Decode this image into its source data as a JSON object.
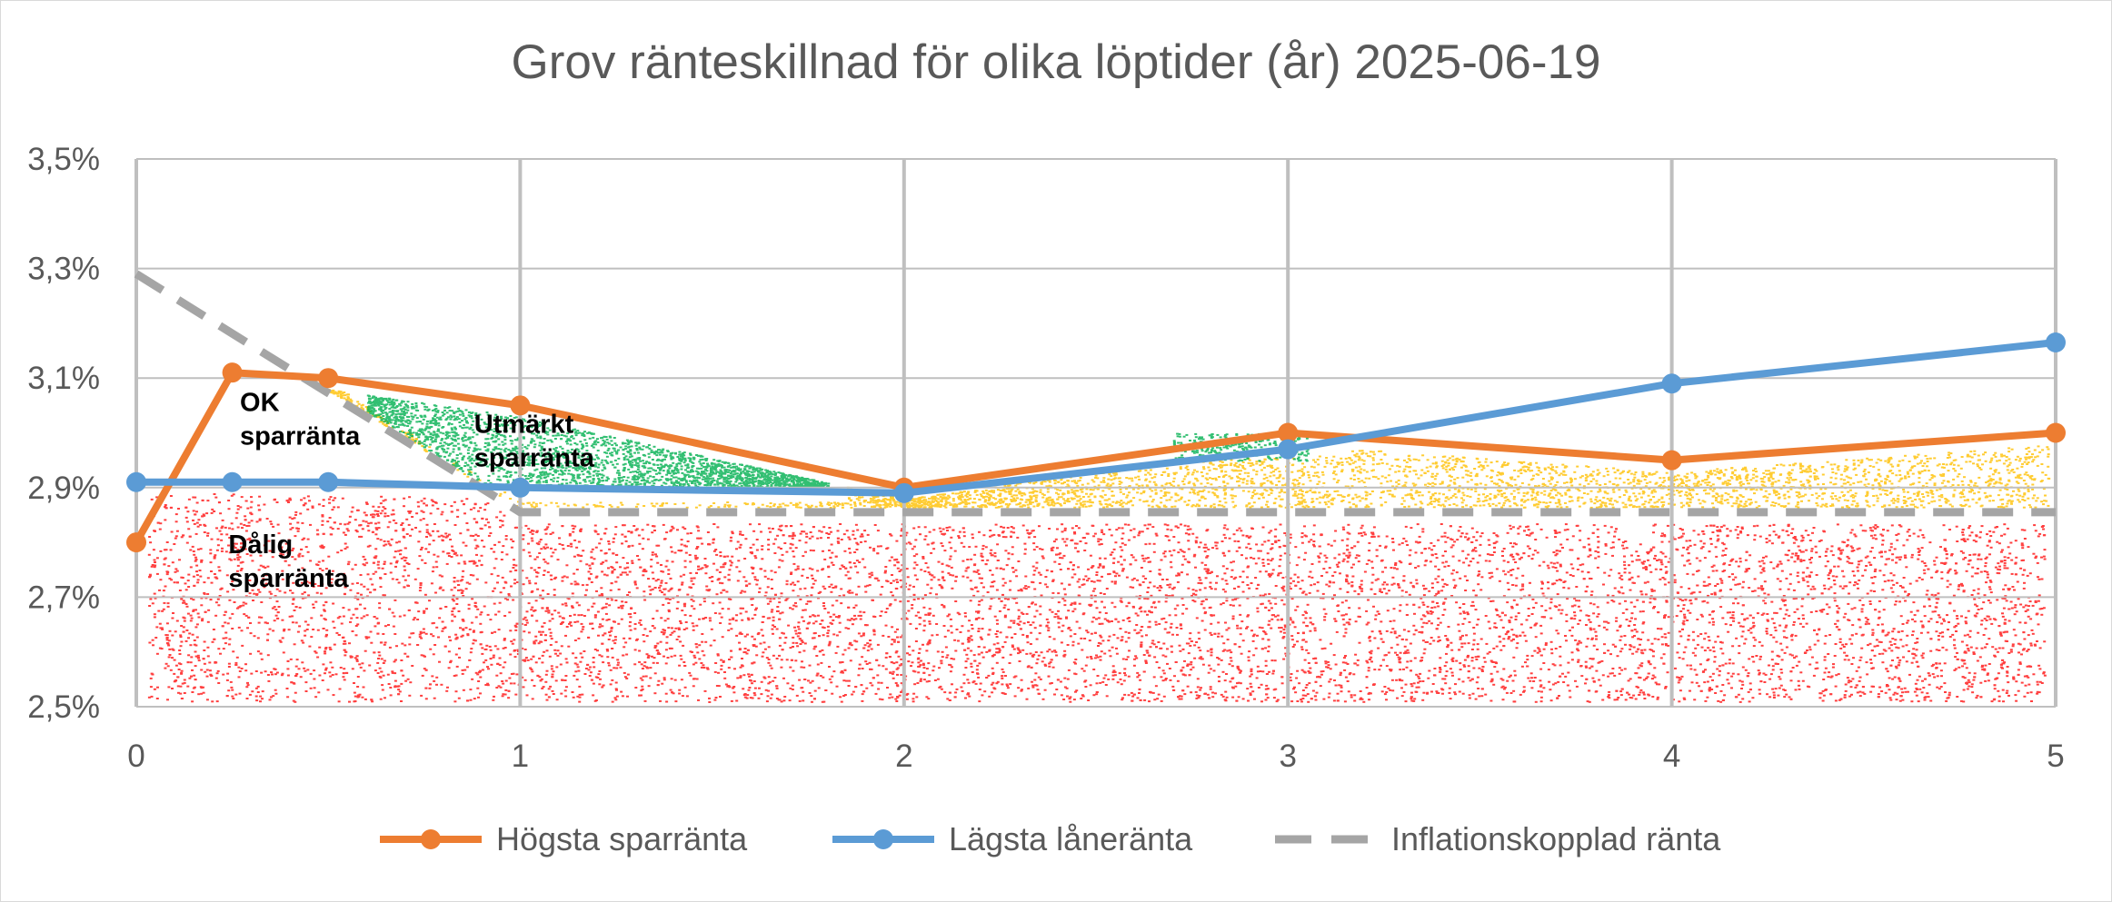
{
  "chart_data": {
    "type": "line",
    "title": "Grov ränteskillnad för olika löptider (år) 2025-06-19",
    "xlabel": "",
    "ylabel": "",
    "xlim": [
      0,
      5
    ],
    "ylim": [
      2.5,
      3.5
    ],
    "x_ticks": [
      0,
      1,
      2,
      3,
      4,
      5
    ],
    "x_tick_labels": [
      "0",
      "1",
      "2",
      "3",
      "4",
      "5"
    ],
    "y_ticks": [
      2.5,
      2.7,
      2.9,
      3.1,
      3.3,
      3.5
    ],
    "y_tick_labels": [
      "2,5%",
      "2,7%",
      "2,9%",
      "3,1%",
      "3,3%",
      "3,5%"
    ],
    "grid": true,
    "legend_position": "bottom",
    "series": [
      {
        "name": "Högsta sparränta",
        "color": "#ed7d31",
        "style": "solid",
        "markers": true,
        "x": [
          0,
          0.25,
          0.5,
          1,
          2,
          3,
          4,
          5
        ],
        "values": [
          2.8,
          3.11,
          3.1,
          3.05,
          2.9,
          3.0,
          2.95,
          3.0
        ]
      },
      {
        "name": "Lägsta låneränta",
        "color": "#5b9bd5",
        "style": "solid",
        "markers": true,
        "x": [
          0,
          0.25,
          0.5,
          1,
          2,
          3,
          4,
          5
        ],
        "values": [
          2.91,
          2.91,
          2.91,
          2.9,
          2.89,
          2.97,
          3.09,
          3.165
        ]
      },
      {
        "name": "Inflationskopplad ränta",
        "color": "#a5a5a5",
        "style": "dashed",
        "markers": false,
        "x": [
          0,
          1,
          2,
          3,
          4,
          5
        ],
        "values": [
          3.29,
          2.855,
          2.855,
          2.855,
          2.855,
          2.855
        ]
      }
    ],
    "annotations": [
      {
        "text_lines": [
          "OK",
          "sparränta"
        ],
        "x": 0.27,
        "y": 3.04,
        "zone_color": "#ffc000"
      },
      {
        "text_lines": [
          "Utmärkt",
          "sparränta"
        ],
        "x": 0.88,
        "y": 3.0,
        "zone_color": "#00b050"
      },
      {
        "text_lines": [
          "Dålig",
          "sparränta"
        ],
        "x": 0.24,
        "y": 2.78,
        "zone_color": "#ff0000"
      }
    ]
  }
}
